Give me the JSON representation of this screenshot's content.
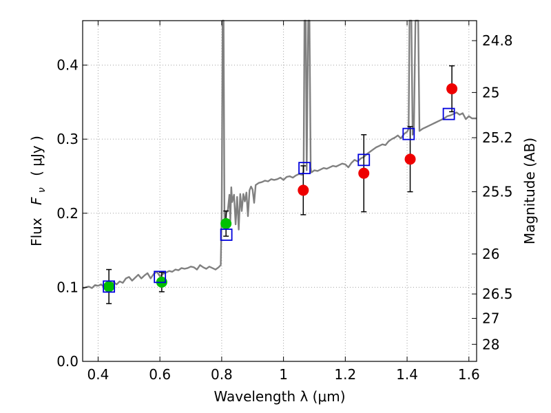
{
  "chart_data": {
    "type": "scatter",
    "xlabel": "Wavelength  λ (μm)",
    "ylabel_prefix": "Flux",
    "ylabel_symbol": "F",
    "ylabel_subscript": "ν",
    "ylabel_unit": "( μJy )",
    "ylabel_right": "Magnitude (AB)",
    "xlim": [
      0.35,
      1.625
    ],
    "ylim": [
      0.0,
      0.46
    ],
    "x_ticks": [
      0.4,
      0.6,
      0.8,
      1.0,
      1.2,
      1.4,
      1.6
    ],
    "x_tick_labels": [
      "0.4",
      "0.6",
      "0.8",
      "1",
      "1.2",
      "1.4",
      "1.6"
    ],
    "y_ticks": [
      0.0,
      0.1,
      0.2,
      0.3,
      0.4
    ],
    "y_tick_labels": [
      "0.0",
      "0.1",
      "0.2",
      "0.3",
      "0.4"
    ],
    "right_ticks": [
      {
        "label": "24.8",
        "flux": 0.433
      },
      {
        "label": "25",
        "flux": 0.363
      },
      {
        "label": "25.2",
        "flux": 0.302
      },
      {
        "label": "25.5",
        "flux": 0.229
      },
      {
        "label": "26",
        "flux": 0.145
      },
      {
        "label": "26.5",
        "flux": 0.091
      },
      {
        "label": "27",
        "flux": 0.058
      },
      {
        "label": "28",
        "flux": 0.023
      }
    ],
    "grid": true,
    "colors": {
      "spectrum": "#808080",
      "green_points": "#00c000",
      "red_points": "#ee0000",
      "model_boxes": "#0000dd",
      "error_bars": "#000000",
      "grid": "#a0a0a0"
    },
    "series": [
      {
        "style": "spectrum-line",
        "points": [
          [
            0.35,
            0.098
          ],
          [
            0.36,
            0.1
          ],
          [
            0.37,
            0.101
          ],
          [
            0.38,
            0.099
          ],
          [
            0.39,
            0.103
          ],
          [
            0.4,
            0.102
          ],
          [
            0.41,
            0.104
          ],
          [
            0.42,
            0.1
          ],
          [
            0.43,
            0.105
          ],
          [
            0.44,
            0.102
          ],
          [
            0.45,
            0.107
          ],
          [
            0.46,
            0.104
          ],
          [
            0.47,
            0.108
          ],
          [
            0.48,
            0.106
          ],
          [
            0.49,
            0.112
          ],
          [
            0.5,
            0.114
          ],
          [
            0.51,
            0.109
          ],
          [
            0.52,
            0.113
          ],
          [
            0.53,
            0.117
          ],
          [
            0.54,
            0.112
          ],
          [
            0.55,
            0.116
          ],
          [
            0.56,
            0.119
          ],
          [
            0.57,
            0.112
          ],
          [
            0.58,
            0.118
          ],
          [
            0.59,
            0.121
          ],
          [
            0.6,
            0.115
          ],
          [
            0.61,
            0.118
          ],
          [
            0.62,
            0.12
          ],
          [
            0.63,
            0.122
          ],
          [
            0.64,
            0.121
          ],
          [
            0.65,
            0.124
          ],
          [
            0.66,
            0.123
          ],
          [
            0.67,
            0.126
          ],
          [
            0.68,
            0.125
          ],
          [
            0.69,
            0.126
          ],
          [
            0.7,
            0.128
          ],
          [
            0.71,
            0.127
          ],
          [
            0.72,
            0.124
          ],
          [
            0.73,
            0.13
          ],
          [
            0.74,
            0.127
          ],
          [
            0.75,
            0.125
          ],
          [
            0.76,
            0.128
          ],
          [
            0.77,
            0.126
          ],
          [
            0.78,
            0.124
          ],
          [
            0.79,
            0.127
          ],
          [
            0.797,
            0.13
          ],
          [
            0.8,
            0.2
          ],
          [
            0.803,
            0.46
          ],
          [
            0.806,
            0.46
          ],
          [
            0.809,
            0.192
          ],
          [
            0.81,
            0.182
          ],
          [
            0.815,
            0.2
          ],
          [
            0.82,
            0.205
          ],
          [
            0.825,
            0.225
          ],
          [
            0.828,
            0.19
          ],
          [
            0.831,
            0.235
          ],
          [
            0.834,
            0.215
          ],
          [
            0.84,
            0.225
          ],
          [
            0.845,
            0.185
          ],
          [
            0.85,
            0.222
          ],
          [
            0.855,
            0.178
          ],
          [
            0.86,
            0.226
          ],
          [
            0.865,
            0.203
          ],
          [
            0.87,
            0.226
          ],
          [
            0.875,
            0.216
          ],
          [
            0.88,
            0.228
          ],
          [
            0.885,
            0.196
          ],
          [
            0.89,
            0.231
          ],
          [
            0.895,
            0.236
          ],
          [
            0.9,
            0.232
          ],
          [
            0.905,
            0.214
          ],
          [
            0.91,
            0.238
          ],
          [
            0.92,
            0.241
          ],
          [
            0.93,
            0.242
          ],
          [
            0.94,
            0.244
          ],
          [
            0.95,
            0.243
          ],
          [
            0.96,
            0.246
          ],
          [
            0.97,
            0.245
          ],
          [
            0.98,
            0.246
          ],
          [
            0.99,
            0.248
          ],
          [
            1.0,
            0.245
          ],
          [
            1.01,
            0.249
          ],
          [
            1.02,
            0.25
          ],
          [
            1.03,
            0.248
          ],
          [
            1.04,
            0.251
          ],
          [
            1.05,
            0.253
          ],
          [
            1.06,
            0.252
          ],
          [
            1.065,
            0.256
          ],
          [
            1.068,
            0.46
          ],
          [
            1.072,
            0.46
          ],
          [
            1.075,
            0.258
          ],
          [
            1.08,
            0.46
          ],
          [
            1.084,
            0.46
          ],
          [
            1.088,
            0.262
          ],
          [
            1.09,
            0.255
          ],
          [
            1.1,
            0.258
          ],
          [
            1.11,
            0.257
          ],
          [
            1.12,
            0.259
          ],
          [
            1.13,
            0.261
          ],
          [
            1.14,
            0.26
          ],
          [
            1.15,
            0.262
          ],
          [
            1.16,
            0.264
          ],
          [
            1.17,
            0.263
          ],
          [
            1.18,
            0.265
          ],
          [
            1.19,
            0.267
          ],
          [
            1.2,
            0.266
          ],
          [
            1.21,
            0.262
          ],
          [
            1.22,
            0.268
          ],
          [
            1.23,
            0.272
          ],
          [
            1.24,
            0.27
          ],
          [
            1.25,
            0.274
          ],
          [
            1.26,
            0.276
          ],
          [
            1.27,
            0.28
          ],
          [
            1.28,
            0.283
          ],
          [
            1.29,
            0.286
          ],
          [
            1.3,
            0.289
          ],
          [
            1.31,
            0.291
          ],
          [
            1.32,
            0.293
          ],
          [
            1.33,
            0.292
          ],
          [
            1.34,
            0.297
          ],
          [
            1.35,
            0.3
          ],
          [
            1.36,
            0.302
          ],
          [
            1.37,
            0.305
          ],
          [
            1.38,
            0.301
          ],
          [
            1.39,
            0.307
          ],
          [
            1.4,
            0.31
          ],
          [
            1.405,
            0.314
          ],
          [
            1.408,
            0.46
          ],
          [
            1.414,
            0.46
          ],
          [
            1.418,
            0.306
          ],
          [
            1.422,
            0.31
          ],
          [
            1.427,
            0.46
          ],
          [
            1.436,
            0.46
          ],
          [
            1.44,
            0.311
          ],
          [
            1.45,
            0.314
          ],
          [
            1.46,
            0.316
          ],
          [
            1.47,
            0.318
          ],
          [
            1.48,
            0.32
          ],
          [
            1.49,
            0.322
          ],
          [
            1.5,
            0.324
          ],
          [
            1.51,
            0.326
          ],
          [
            1.52,
            0.328
          ],
          [
            1.53,
            0.331
          ],
          [
            1.54,
            0.332
          ],
          [
            1.55,
            0.334
          ],
          [
            1.56,
            0.336
          ],
          [
            1.57,
            0.333
          ],
          [
            1.58,
            0.335
          ],
          [
            1.59,
            0.327
          ],
          [
            1.6,
            0.331
          ],
          [
            1.61,
            0.328
          ],
          [
            1.625,
            0.328
          ]
        ]
      },
      {
        "style": "green-circles",
        "points": [
          {
            "x": 0.435,
            "y": 0.101,
            "err": 0.023
          },
          {
            "x": 0.606,
            "y": 0.107,
            "err": 0.013
          },
          {
            "x": 0.814,
            "y": 0.186,
            "err": 0.017
          }
        ]
      },
      {
        "style": "red-circles",
        "points": [
          {
            "x": 1.064,
            "y": 0.231,
            "err": 0.033
          },
          {
            "x": 1.26,
            "y": 0.254,
            "err": 0.052
          },
          {
            "x": 1.41,
            "y": 0.273,
            "err": 0.044
          },
          {
            "x": 1.545,
            "y": 0.368,
            "err": 0.031
          }
        ]
      },
      {
        "style": "model-squares",
        "points": [
          {
            "x": 0.435,
            "y": 0.101
          },
          {
            "x": 0.6,
            "y": 0.114
          },
          {
            "x": 0.815,
            "y": 0.171
          },
          {
            "x": 1.068,
            "y": 0.261
          },
          {
            "x": 1.26,
            "y": 0.272
          },
          {
            "x": 1.405,
            "y": 0.307
          },
          {
            "x": 1.535,
            "y": 0.334
          }
        ]
      }
    ]
  }
}
